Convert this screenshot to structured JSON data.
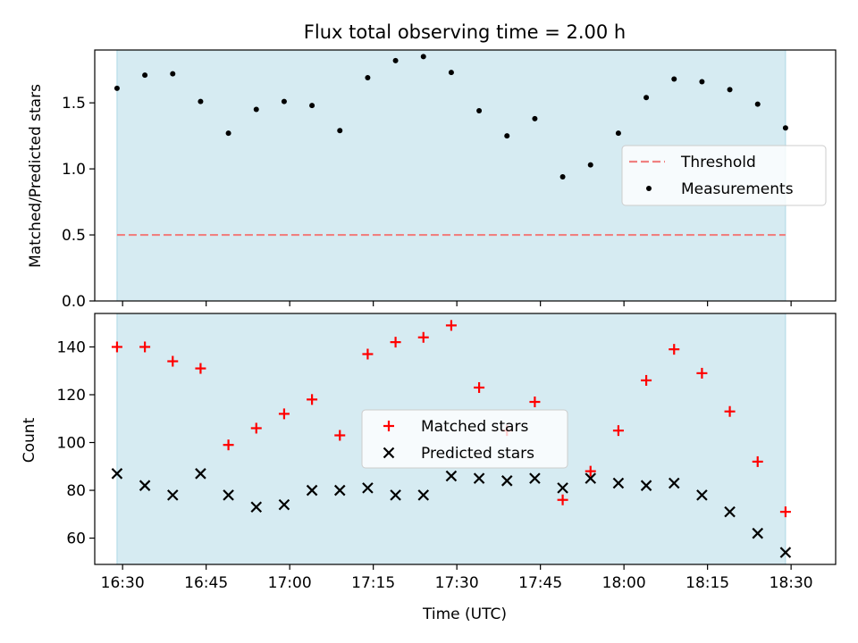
{
  "title": "Flux total observing time = 2.00 h",
  "colors": {
    "shade": "#add8e6",
    "threshold": "#f08080",
    "measurement": "#000000",
    "matched": "#ff0000",
    "predicted": "#000000"
  },
  "chart_data": [
    {
      "type": "scatter",
      "panel": "top",
      "ylabel": "Matched/Predicted stars",
      "ylim": [
        0,
        1.9
      ],
      "yticks": [
        0.0,
        0.5,
        1.0,
        1.5
      ],
      "ytick_labels": [
        "0.0",
        "0.5",
        "1.0",
        "1.5"
      ],
      "shaded_range": [
        "16:29",
        "18:29"
      ],
      "threshold": {
        "name": "Threshold",
        "y": 0.5,
        "style": "dashed"
      },
      "series": [
        {
          "name": "Measurements",
          "marker": "dot",
          "x": [
            "16:29",
            "16:34",
            "16:39",
            "16:44",
            "16:49",
            "16:54",
            "16:59",
            "17:04",
            "17:09",
            "17:14",
            "17:19",
            "17:24",
            "17:29",
            "17:34",
            "17:39",
            "17:44",
            "17:49",
            "17:54",
            "17:59",
            "18:04",
            "18:09",
            "18:14",
            "18:19",
            "18:24",
            "18:29"
          ],
          "values": [
            1.61,
            1.71,
            1.72,
            1.51,
            1.27,
            1.45,
            1.51,
            1.48,
            1.29,
            1.69,
            1.82,
            1.85,
            1.73,
            1.44,
            1.25,
            1.38,
            0.94,
            1.03,
            1.27,
            1.54,
            1.68,
            1.66,
            1.6,
            1.49,
            1.31
          ]
        }
      ],
      "legend": {
        "placement": "right",
        "entries": [
          "Threshold",
          "Measurements"
        ]
      },
      "grid": false
    },
    {
      "type": "scatter",
      "panel": "bottom",
      "xlabel": "Time (UTC)",
      "ylabel": "Count",
      "ylim": [
        49,
        154
      ],
      "yticks": [
        60,
        80,
        100,
        120,
        140
      ],
      "ytick_labels": [
        "60",
        "80",
        "100",
        "120",
        "140"
      ],
      "xlim": [
        "16:25",
        "18:38"
      ],
      "xticks": [
        "16:30",
        "16:45",
        "17:00",
        "17:15",
        "17:30",
        "17:45",
        "18:00",
        "18:15",
        "18:30"
      ],
      "shaded_range": [
        "16:29",
        "18:29"
      ],
      "series": [
        {
          "name": "Matched stars",
          "marker": "plus",
          "x": [
            "16:29",
            "16:34",
            "16:39",
            "16:44",
            "16:49",
            "16:54",
            "16:59",
            "17:04",
            "17:09",
            "17:14",
            "17:19",
            "17:24",
            "17:29",
            "17:34",
            "17:39",
            "17:44",
            "17:49",
            "17:54",
            "17:59",
            "18:04",
            "18:09",
            "18:14",
            "18:19",
            "18:24",
            "18:29"
          ],
          "values": [
            140,
            140,
            134,
            131,
            99,
            106,
            112,
            118,
            103,
            137,
            142,
            144,
            149,
            123,
            105,
            117,
            76,
            88,
            105,
            126,
            139,
            129,
            113,
            92,
            71
          ]
        },
        {
          "name": "Predicted stars",
          "marker": "x",
          "x": [
            "16:29",
            "16:34",
            "16:39",
            "16:44",
            "16:49",
            "16:54",
            "16:59",
            "17:04",
            "17:09",
            "17:14",
            "17:19",
            "17:24",
            "17:29",
            "17:34",
            "17:39",
            "17:44",
            "17:49",
            "17:54",
            "17:59",
            "18:04",
            "18:09",
            "18:14",
            "18:19",
            "18:24",
            "18:29"
          ],
          "values": [
            87,
            82,
            78,
            87,
            78,
            73,
            74,
            80,
            80,
            81,
            78,
            78,
            86,
            85,
            84,
            85,
            81,
            85,
            83,
            82,
            83,
            78,
            71,
            62,
            54
          ]
        }
      ],
      "legend": {
        "placement": "center",
        "entries": [
          "Matched stars",
          "Predicted stars"
        ]
      },
      "grid": false
    }
  ]
}
